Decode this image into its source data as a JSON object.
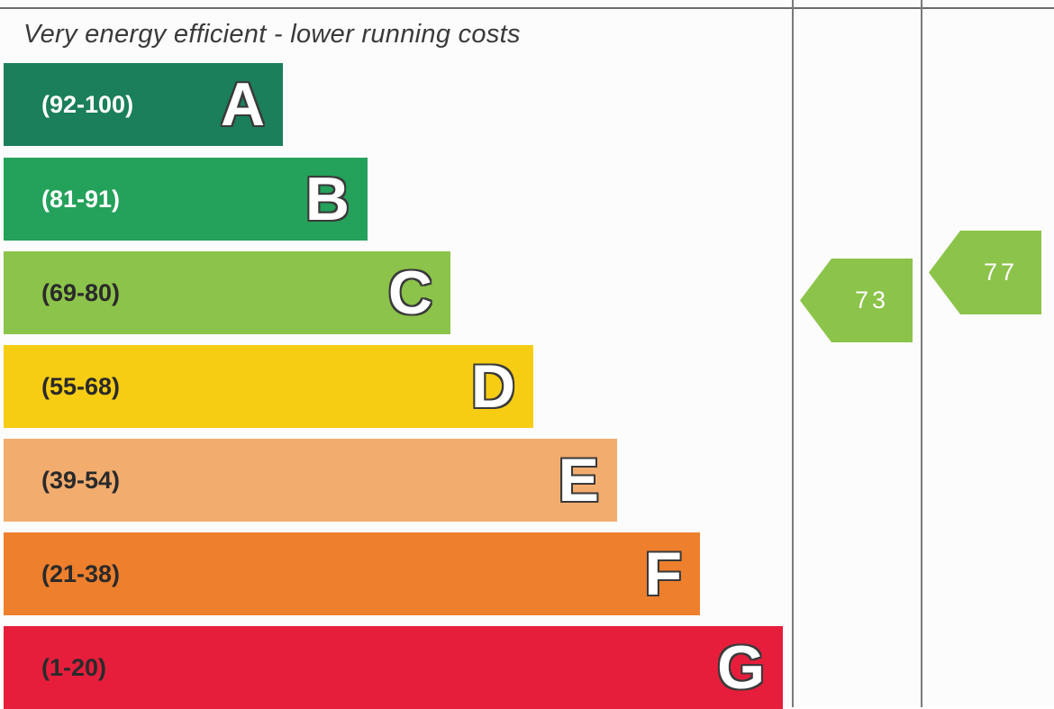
{
  "header": {
    "efficient_text": "Very energy efficient - lower running costs"
  },
  "chart_data": {
    "type": "bar",
    "bands": [
      {
        "letter": "A",
        "range": "(92-100)",
        "color": "#1a7f5a",
        "range_color": "#ffffff"
      },
      {
        "letter": "B",
        "range": "(81-91)",
        "color": "#24a15a",
        "range_color": "#ffffff"
      },
      {
        "letter": "C",
        "range": "(69-80)",
        "color": "#8cc34a",
        "range_color": "#2a2a2a"
      },
      {
        "letter": "D",
        "range": "(55-68)",
        "color": "#f7cd14",
        "range_color": "#2a2a2a"
      },
      {
        "letter": "E",
        "range": "(39-54)",
        "color": "#f2ac6e",
        "range_color": "#2a2a2a"
      },
      {
        "letter": "F",
        "range": "(21-38)",
        "color": "#ee7f2c",
        "range_color": "#2a2a2a"
      },
      {
        "letter": "G",
        "range": "(1-20)",
        "color": "#e61e3c",
        "range_color": "#2a2a2a"
      }
    ],
    "ratings": [
      {
        "value": "73",
        "color": "#8cc34a"
      },
      {
        "value": "77",
        "color": "#8cc34a"
      }
    ]
  }
}
